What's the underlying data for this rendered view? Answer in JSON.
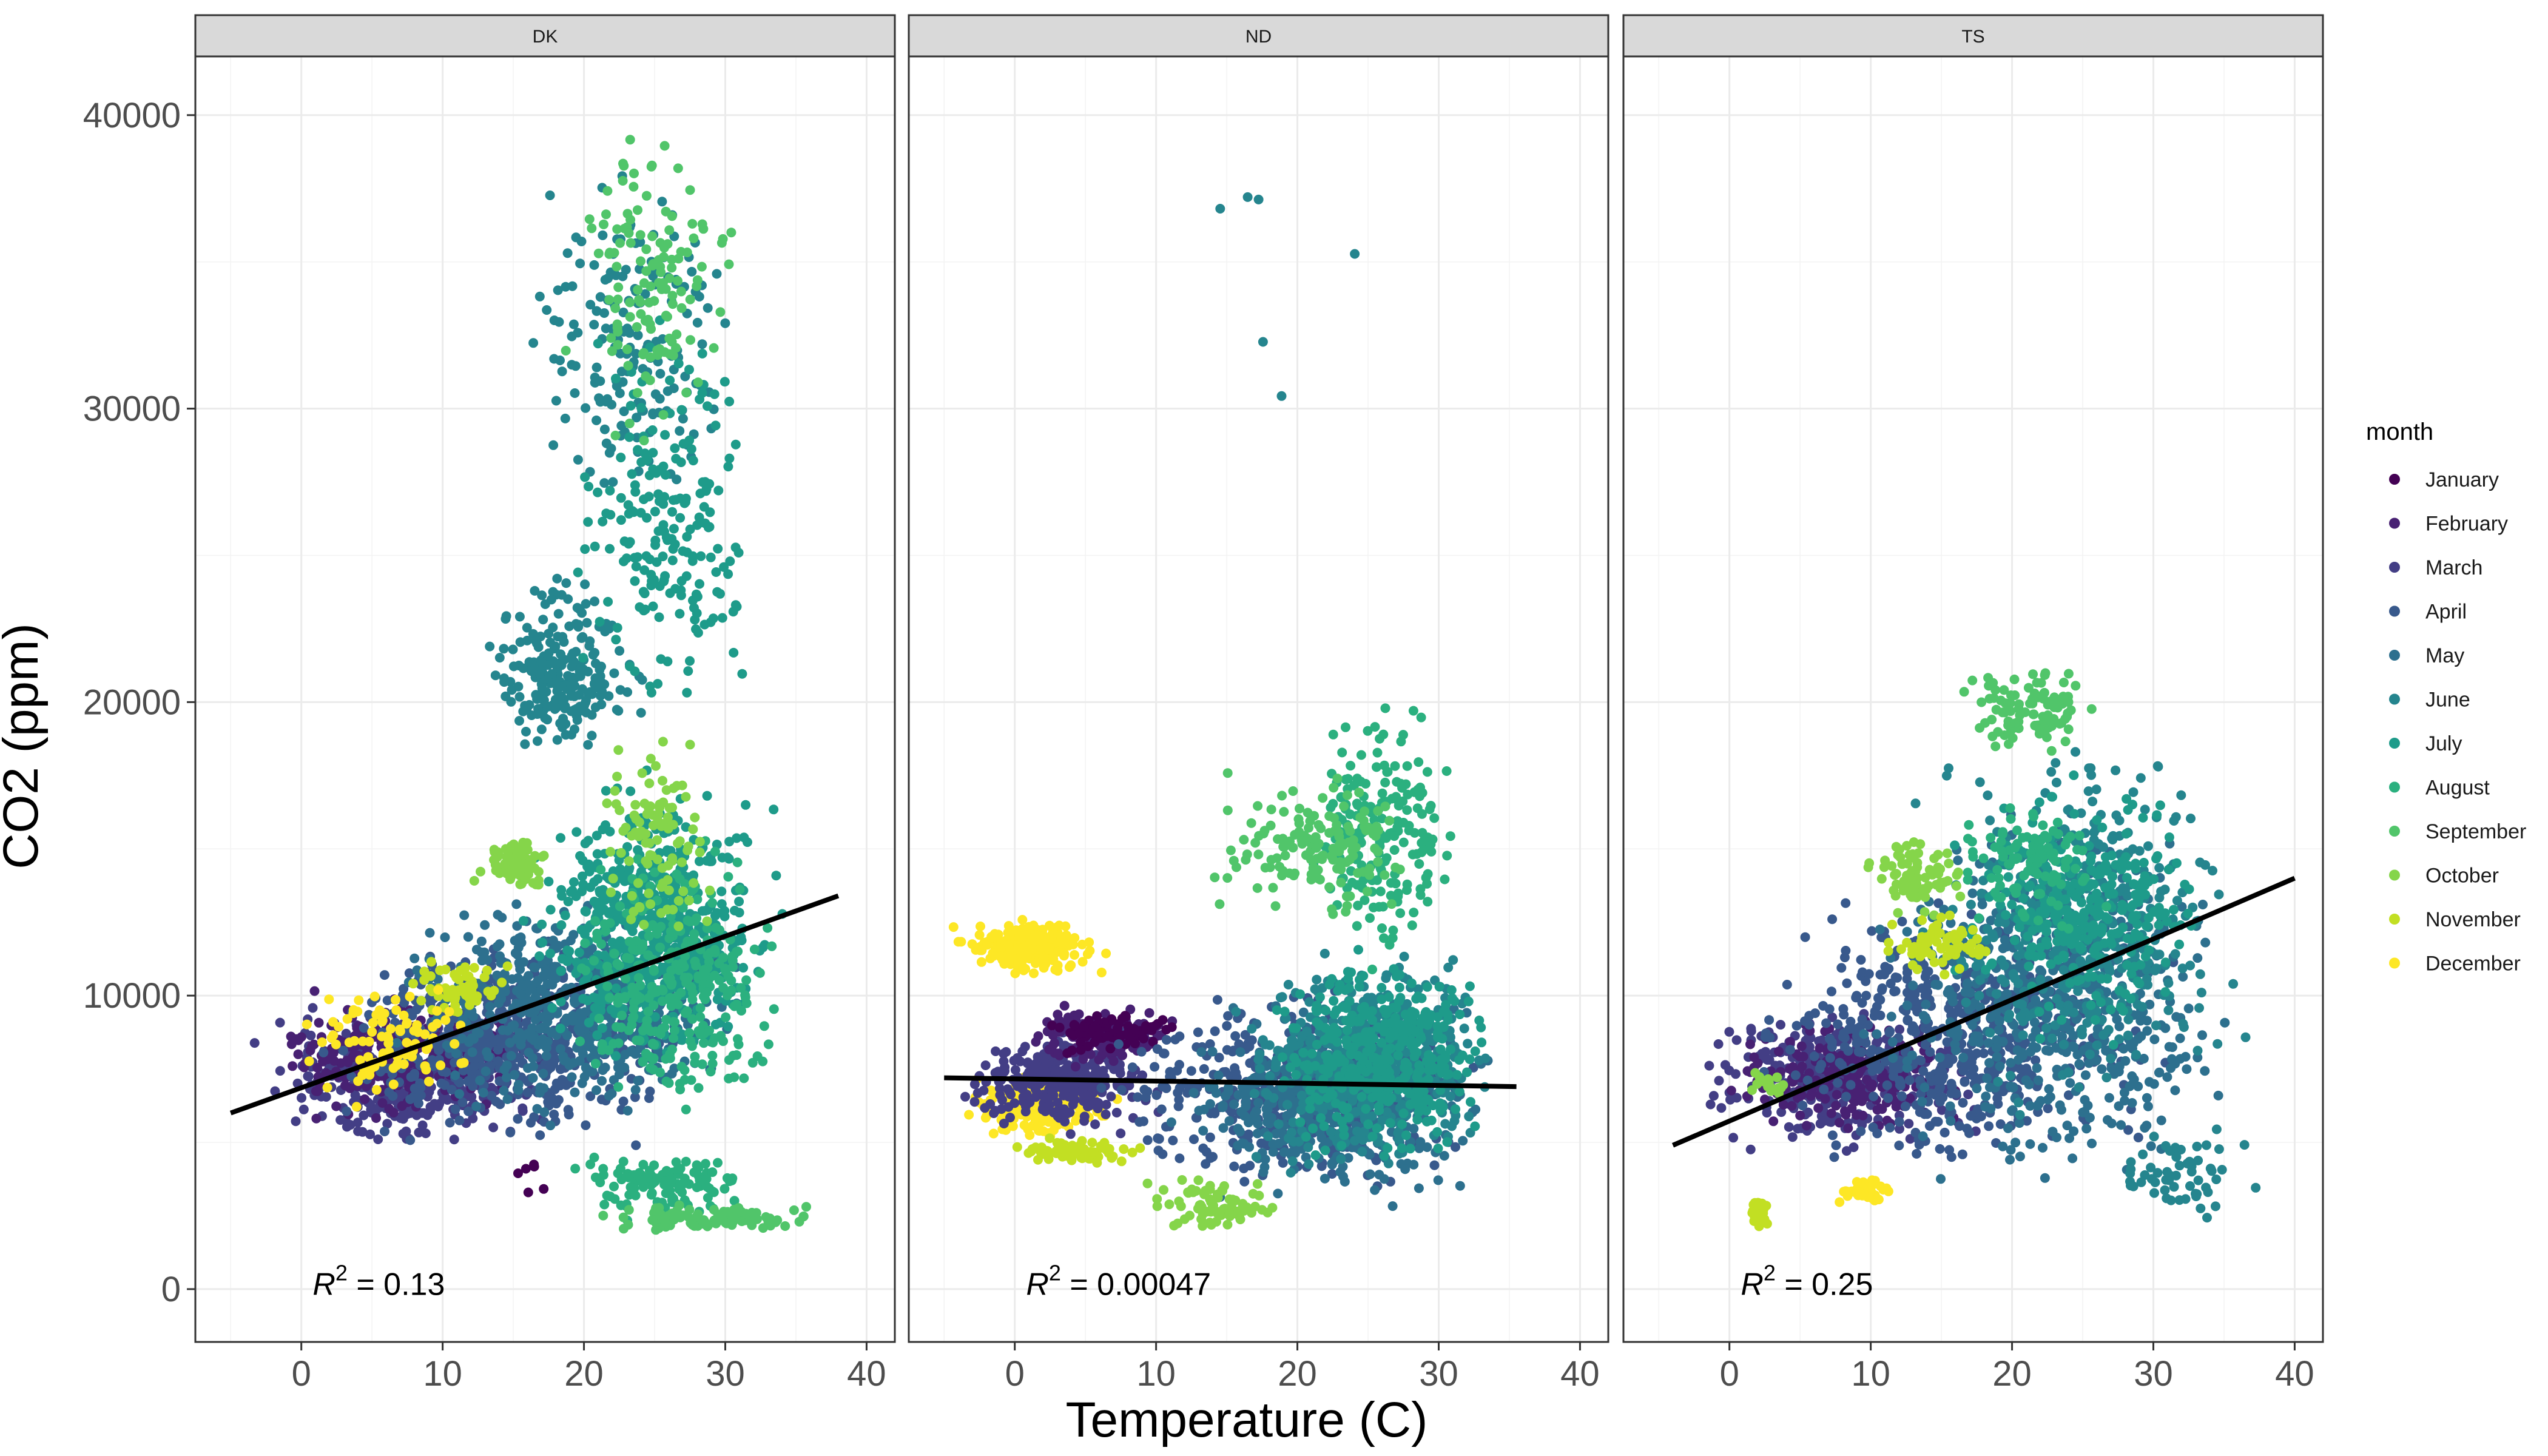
{
  "chart_data": {
    "type": "scatter",
    "xlabel": "Temperature (C)",
    "ylabel": "CO2 (ppm)",
    "xlim": [
      -7.5,
      42
    ],
    "ylim": [
      -1800,
      42000
    ],
    "x_ticks": [
      0,
      10,
      20,
      30,
      40
    ],
    "y_ticks": [
      0,
      10000,
      20000,
      30000,
      40000
    ],
    "x_tick_labels": [
      "0",
      "10",
      "20",
      "30",
      "40"
    ],
    "y_tick_labels": [
      "0",
      "10000",
      "20000",
      "30000",
      "40000"
    ],
    "grid": true,
    "legend": {
      "title": "month",
      "placement": "right",
      "entries": [
        {
          "name": "January",
          "color": "#440154"
        },
        {
          "name": "February",
          "color": "#482173"
        },
        {
          "name": "March",
          "color": "#433E85"
        },
        {
          "name": "April",
          "color": "#38598C"
        },
        {
          "name": "May",
          "color": "#2D708E"
        },
        {
          "name": "June",
          "color": "#25858E"
        },
        {
          "name": "July",
          "color": "#1E9B8A"
        },
        {
          "name": "August",
          "color": "#2BB07F"
        },
        {
          "name": "September",
          "color": "#51C56A"
        },
        {
          "name": "October",
          "color": "#85D54A"
        },
        {
          "name": "November",
          "color": "#C2DF23"
        },
        {
          "name": "December",
          "color": "#FDE725"
        }
      ]
    },
    "panels": [
      {
        "label": "DK",
        "r2_label": "0.13",
        "fit_line": [
          [
            -5,
            6000
          ],
          [
            38,
            13400
          ]
        ],
        "clusters": [
          {
            "month": 2,
            "n": 380,
            "x": [
              -5,
              20
            ],
            "y": [
              4400,
              10000
            ]
          },
          {
            "month": 1,
            "n": 260,
            "x": [
              -4,
              18
            ],
            "y": [
              5500,
              10500
            ]
          },
          {
            "month": 3,
            "n": 520,
            "x": [
              0,
              28
            ],
            "y": [
              4500,
              12500
            ]
          },
          {
            "month": 4,
            "n": 520,
            "x": [
              5,
              33
            ],
            "y": [
              5000,
              14000
            ]
          },
          {
            "month": 5,
            "n": 220,
            "x": [
              12,
              25
            ],
            "y": [
              17000,
              25000
            ]
          },
          {
            "month": 5,
            "n": 180,
            "x": [
              15,
              32
            ],
            "y": [
              25000,
              39000
            ]
          },
          {
            "month": 6,
            "n": 600,
            "x": [
              15,
              35
            ],
            "y": [
              7000,
              18000
            ]
          },
          {
            "month": 6,
            "n": 200,
            "x": [
              18,
              34
            ],
            "y": [
              18000,
              34000
            ]
          },
          {
            "month": 7,
            "n": 300,
            "x": [
              18,
              35
            ],
            "y": [
              5000,
              16000
            ]
          },
          {
            "month": 7,
            "n": 120,
            "x": [
              18,
              33
            ],
            "y": [
              2000,
              5000
            ]
          },
          {
            "month": 8,
            "n": 130,
            "x": [
              18,
              32
            ],
            "y": [
              28000,
              40000
            ]
          },
          {
            "month": 8,
            "n": 100,
            "x": [
              20,
              38
            ],
            "y": [
              1800,
              3000
            ]
          },
          {
            "month": 9,
            "n": 80,
            "x": [
              12,
              18
            ],
            "y": [
              13500,
              15500
            ]
          },
          {
            "month": 9,
            "n": 100,
            "x": [
              20,
              30
            ],
            "y": [
              11000,
              20000
            ]
          },
          {
            "month": 10,
            "n": 60,
            "x": [
              7,
              16
            ],
            "y": [
              9000,
              11500
            ]
          },
          {
            "month": 11,
            "n": 90,
            "x": [
              -2,
              14
            ],
            "y": [
              6000,
              11000
            ]
          },
          {
            "month": 0,
            "n": 6,
            "x": [
              15,
              18
            ],
            "y": [
              2600,
              5000
            ]
          }
        ]
      },
      {
        "label": "ND",
        "r2_label": "0.00047",
        "fit_line": [
          [
            -5,
            7200
          ],
          [
            35.5,
            6900
          ]
        ],
        "clusters": [
          {
            "month": 11,
            "n": 220,
            "x": [
              -5,
              7
            ],
            "y": [
              10500,
              12800
            ]
          },
          {
            "month": 11,
            "n": 220,
            "x": [
              -4,
              8
            ],
            "y": [
              5000,
              7500
            ]
          },
          {
            "month": 10,
            "n": 80,
            "x": [
              -1,
              10
            ],
            "y": [
              4200,
              5200
            ]
          },
          {
            "month": 2,
            "n": 300,
            "x": [
              -5,
              12
            ],
            "y": [
              5200,
              9000
            ]
          },
          {
            "month": 1,
            "n": 150,
            "x": [
              0,
              12
            ],
            "y": [
              7500,
              9800
            ]
          },
          {
            "month": 0,
            "n": 80,
            "x": [
              2,
              12
            ],
            "y": [
              8000,
              9500
            ]
          },
          {
            "month": 3,
            "n": 450,
            "x": [
              5,
              34
            ],
            "y": [
              3000,
              10500
            ]
          },
          {
            "month": 4,
            "n": 450,
            "x": [
              10,
              35
            ],
            "y": [
              2500,
              10000
            ]
          },
          {
            "month": 5,
            "n": 500,
            "x": [
              15,
              35
            ],
            "y": [
              3500,
              12000
            ]
          },
          {
            "month": 6,
            "n": 400,
            "x": [
              17,
              35
            ],
            "y": [
              4000,
              12000
            ]
          },
          {
            "month": 7,
            "n": 200,
            "x": [
              20,
              32
            ],
            "y": [
              10000,
              21000
            ]
          },
          {
            "month": 8,
            "n": 150,
            "x": [
              13,
              30
            ],
            "y": [
              12000,
              18000
            ]
          },
          {
            "month": 9,
            "n": 80,
            "x": [
              9,
              20
            ],
            "y": [
              1800,
              4000
            ]
          },
          {
            "month": 5,
            "n": 1,
            "x": [
              14.5,
              14.6
            ],
            "y": [
              36800,
              36900
            ]
          },
          {
            "month": 5,
            "n": 1,
            "x": [
              16.4,
              16.5
            ],
            "y": [
              37200,
              37250
            ]
          },
          {
            "month": 5,
            "n": 1,
            "x": [
              17.2,
              17.3
            ],
            "y": [
              37100,
              37150
            ]
          },
          {
            "month": 5,
            "n": 1,
            "x": [
              17.5,
              17.6
            ],
            "y": [
              32200,
              32300
            ]
          },
          {
            "month": 5,
            "n": 1,
            "x": [
              18.8,
              18.9
            ],
            "y": [
              30400,
              30500
            ]
          },
          {
            "month": 5,
            "n": 1,
            "x": [
              24,
              24.1
            ],
            "y": [
              35200,
              35300
            ]
          }
        ]
      },
      {
        "label": "TS",
        "r2_label": "0.25",
        "fit_line": [
          [
            -4,
            4900
          ],
          [
            40,
            14000
          ]
        ],
        "clusters": [
          {
            "month": 2,
            "n": 350,
            "x": [
              -4,
              20
            ],
            "y": [
              4400,
              10000
            ]
          },
          {
            "month": 1,
            "n": 200,
            "x": [
              -2,
              18
            ],
            "y": [
              5000,
              9500
            ]
          },
          {
            "month": 3,
            "n": 550,
            "x": [
              0,
              33
            ],
            "y": [
              3500,
              14000
            ]
          },
          {
            "month": 4,
            "n": 550,
            "x": [
              8,
              38
            ],
            "y": [
              3000,
              17000
            ]
          },
          {
            "month": 5,
            "n": 400,
            "x": [
              12,
              38
            ],
            "y": [
              5000,
              20000
            ]
          },
          {
            "month": 6,
            "n": 300,
            "x": [
              15,
              35
            ],
            "y": [
              8000,
              18000
            ]
          },
          {
            "month": 7,
            "n": 100,
            "x": [
              15,
              28
            ],
            "y": [
              12000,
              17000
            ]
          },
          {
            "month": 8,
            "n": 100,
            "x": [
              15,
              28
            ],
            "y": [
              18000,
              21500
            ]
          },
          {
            "month": 9,
            "n": 80,
            "x": [
              9,
              17
            ],
            "y": [
              12500,
              15800
            ]
          },
          {
            "month": 10,
            "n": 80,
            "x": [
              10,
              20
            ],
            "y": [
              10500,
              13000
            ]
          },
          {
            "month": 11,
            "n": 40,
            "x": [
              7,
              12
            ],
            "y": [
              2800,
              3800
            ]
          },
          {
            "month": 10,
            "n": 30,
            "x": [
              1,
              3
            ],
            "y": [
              1900,
              3500
            ]
          },
          {
            "month": 9,
            "n": 20,
            "x": [
              1,
              5
            ],
            "y": [
              6500,
              7500
            ]
          },
          {
            "month": 5,
            "n": 60,
            "x": [
              26,
              38
            ],
            "y": [
              1800,
              6000
            ]
          }
        ]
      }
    ]
  }
}
